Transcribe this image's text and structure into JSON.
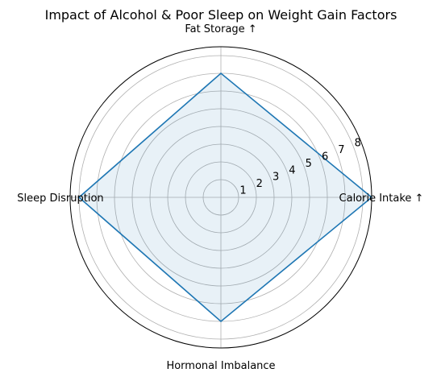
{
  "chart_data": {
    "type": "radar",
    "title": "Impact of Alcohol & Poor Sleep on Weight Gain Factors",
    "categories": [
      "Calorie Intake ↑",
      "Fat Storage ↑",
      "Sleep Disruption",
      "Hormonal Imbalance"
    ],
    "series": [
      {
        "values": [
          8.5,
          7.0,
          8.0,
          7.0
        ]
      }
    ],
    "radial_ticks": [
      1,
      2,
      3,
      4,
      5,
      6,
      7,
      8
    ],
    "rlim": [
      0,
      8.5
    ],
    "grid": true,
    "colors": {
      "line": "#1f77b4",
      "fill": "#1f77b4",
      "grid": "#b0b0b0",
      "frame": "#000000"
    }
  }
}
